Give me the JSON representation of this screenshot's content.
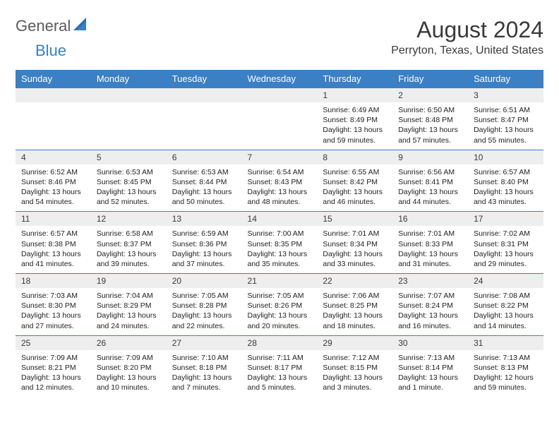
{
  "logo": {
    "part1": "General",
    "part2": "Blue"
  },
  "title": "August 2024",
  "location": "Perryton, Texas, United States",
  "colors": {
    "header_bg": "#3b7fc4",
    "header_fg": "#ffffff",
    "daynum_bg": "#eeeeee",
    "border": "#3b7fc4",
    "text": "#222222"
  },
  "weekdays": [
    "Sunday",
    "Monday",
    "Tuesday",
    "Wednesday",
    "Thursday",
    "Friday",
    "Saturday"
  ],
  "weeks": [
    {
      "nums": [
        "",
        "",
        "",
        "",
        "1",
        "2",
        "3"
      ],
      "cells": [
        null,
        null,
        null,
        null,
        {
          "sr": "Sunrise: 6:49 AM",
          "ss": "Sunset: 8:49 PM",
          "d1": "Daylight: 13 hours",
          "d2": "and 59 minutes."
        },
        {
          "sr": "Sunrise: 6:50 AM",
          "ss": "Sunset: 8:48 PM",
          "d1": "Daylight: 13 hours",
          "d2": "and 57 minutes."
        },
        {
          "sr": "Sunrise: 6:51 AM",
          "ss": "Sunset: 8:47 PM",
          "d1": "Daylight: 13 hours",
          "d2": "and 55 minutes."
        }
      ]
    },
    {
      "nums": [
        "4",
        "5",
        "6",
        "7",
        "8",
        "9",
        "10"
      ],
      "cells": [
        {
          "sr": "Sunrise: 6:52 AM",
          "ss": "Sunset: 8:46 PM",
          "d1": "Daylight: 13 hours",
          "d2": "and 54 minutes."
        },
        {
          "sr": "Sunrise: 6:53 AM",
          "ss": "Sunset: 8:45 PM",
          "d1": "Daylight: 13 hours",
          "d2": "and 52 minutes."
        },
        {
          "sr": "Sunrise: 6:53 AM",
          "ss": "Sunset: 8:44 PM",
          "d1": "Daylight: 13 hours",
          "d2": "and 50 minutes."
        },
        {
          "sr": "Sunrise: 6:54 AM",
          "ss": "Sunset: 8:43 PM",
          "d1": "Daylight: 13 hours",
          "d2": "and 48 minutes."
        },
        {
          "sr": "Sunrise: 6:55 AM",
          "ss": "Sunset: 8:42 PM",
          "d1": "Daylight: 13 hours",
          "d2": "and 46 minutes."
        },
        {
          "sr": "Sunrise: 6:56 AM",
          "ss": "Sunset: 8:41 PM",
          "d1": "Daylight: 13 hours",
          "d2": "and 44 minutes."
        },
        {
          "sr": "Sunrise: 6:57 AM",
          "ss": "Sunset: 8:40 PM",
          "d1": "Daylight: 13 hours",
          "d2": "and 43 minutes."
        }
      ]
    },
    {
      "nums": [
        "11",
        "12",
        "13",
        "14",
        "15",
        "16",
        "17"
      ],
      "cells": [
        {
          "sr": "Sunrise: 6:57 AM",
          "ss": "Sunset: 8:38 PM",
          "d1": "Daylight: 13 hours",
          "d2": "and 41 minutes."
        },
        {
          "sr": "Sunrise: 6:58 AM",
          "ss": "Sunset: 8:37 PM",
          "d1": "Daylight: 13 hours",
          "d2": "and 39 minutes."
        },
        {
          "sr": "Sunrise: 6:59 AM",
          "ss": "Sunset: 8:36 PM",
          "d1": "Daylight: 13 hours",
          "d2": "and 37 minutes."
        },
        {
          "sr": "Sunrise: 7:00 AM",
          "ss": "Sunset: 8:35 PM",
          "d1": "Daylight: 13 hours",
          "d2": "and 35 minutes."
        },
        {
          "sr": "Sunrise: 7:01 AM",
          "ss": "Sunset: 8:34 PM",
          "d1": "Daylight: 13 hours",
          "d2": "and 33 minutes."
        },
        {
          "sr": "Sunrise: 7:01 AM",
          "ss": "Sunset: 8:33 PM",
          "d1": "Daylight: 13 hours",
          "d2": "and 31 minutes."
        },
        {
          "sr": "Sunrise: 7:02 AM",
          "ss": "Sunset: 8:31 PM",
          "d1": "Daylight: 13 hours",
          "d2": "and 29 minutes."
        }
      ]
    },
    {
      "nums": [
        "18",
        "19",
        "20",
        "21",
        "22",
        "23",
        "24"
      ],
      "cells": [
        {
          "sr": "Sunrise: 7:03 AM",
          "ss": "Sunset: 8:30 PM",
          "d1": "Daylight: 13 hours",
          "d2": "and 27 minutes."
        },
        {
          "sr": "Sunrise: 7:04 AM",
          "ss": "Sunset: 8:29 PM",
          "d1": "Daylight: 13 hours",
          "d2": "and 24 minutes."
        },
        {
          "sr": "Sunrise: 7:05 AM",
          "ss": "Sunset: 8:28 PM",
          "d1": "Daylight: 13 hours",
          "d2": "and 22 minutes."
        },
        {
          "sr": "Sunrise: 7:05 AM",
          "ss": "Sunset: 8:26 PM",
          "d1": "Daylight: 13 hours",
          "d2": "and 20 minutes."
        },
        {
          "sr": "Sunrise: 7:06 AM",
          "ss": "Sunset: 8:25 PM",
          "d1": "Daylight: 13 hours",
          "d2": "and 18 minutes."
        },
        {
          "sr": "Sunrise: 7:07 AM",
          "ss": "Sunset: 8:24 PM",
          "d1": "Daylight: 13 hours",
          "d2": "and 16 minutes."
        },
        {
          "sr": "Sunrise: 7:08 AM",
          "ss": "Sunset: 8:22 PM",
          "d1": "Daylight: 13 hours",
          "d2": "and 14 minutes."
        }
      ]
    },
    {
      "nums": [
        "25",
        "26",
        "27",
        "28",
        "29",
        "30",
        "31"
      ],
      "cells": [
        {
          "sr": "Sunrise: 7:09 AM",
          "ss": "Sunset: 8:21 PM",
          "d1": "Daylight: 13 hours",
          "d2": "and 12 minutes."
        },
        {
          "sr": "Sunrise: 7:09 AM",
          "ss": "Sunset: 8:20 PM",
          "d1": "Daylight: 13 hours",
          "d2": "and 10 minutes."
        },
        {
          "sr": "Sunrise: 7:10 AM",
          "ss": "Sunset: 8:18 PM",
          "d1": "Daylight: 13 hours",
          "d2": "and 7 minutes."
        },
        {
          "sr": "Sunrise: 7:11 AM",
          "ss": "Sunset: 8:17 PM",
          "d1": "Daylight: 13 hours",
          "d2": "and 5 minutes."
        },
        {
          "sr": "Sunrise: 7:12 AM",
          "ss": "Sunset: 8:15 PM",
          "d1": "Daylight: 13 hours",
          "d2": "and 3 minutes."
        },
        {
          "sr": "Sunrise: 7:13 AM",
          "ss": "Sunset: 8:14 PM",
          "d1": "Daylight: 13 hours",
          "d2": "and 1 minute."
        },
        {
          "sr": "Sunrise: 7:13 AM",
          "ss": "Sunset: 8:13 PM",
          "d1": "Daylight: 12 hours",
          "d2": "and 59 minutes."
        }
      ]
    }
  ]
}
